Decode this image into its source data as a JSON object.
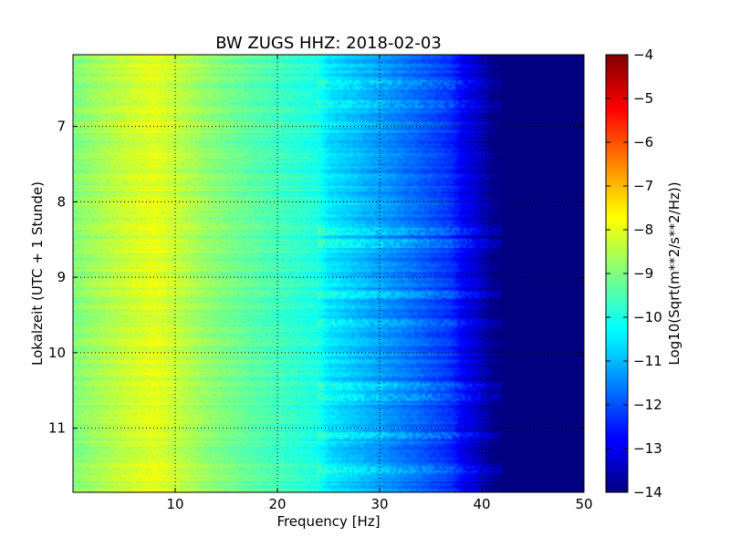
{
  "chart_data": {
    "type": "heatmap",
    "title": "BW ZUGS HHZ: 2018-02-03",
    "xlabel": "Frequency [Hz]",
    "ylabel": "Lokalzeit (UTC + 1 Stunde)",
    "xlim": [
      0,
      50
    ],
    "ylim": [
      11.85,
      6.05
    ],
    "y_inverted": true,
    "xticks": [
      10,
      20,
      30,
      40,
      50
    ],
    "yticks": [
      7,
      8,
      9,
      10,
      11
    ],
    "grid": true,
    "colormap": "jet",
    "colorbar": {
      "label": "Log10(Sqrt(m**2/s**2/Hz))",
      "range": [
        -14,
        -4
      ],
      "ticks": [
        -4,
        -5,
        -6,
        -7,
        -8,
        -9,
        -10,
        -11,
        -12,
        -13,
        -14
      ]
    },
    "spectrum_profile": {
      "frequency_hz": [
        0,
        2,
        5,
        8,
        10,
        13,
        17,
        20,
        24,
        25,
        28,
        30,
        34,
        37,
        38,
        40,
        41,
        42,
        50
      ],
      "log_amplitude": [
        -9.0,
        -8.7,
        -8.3,
        -8.0,
        -8.3,
        -8.8,
        -9.3,
        -9.6,
        -10.0,
        -10.5,
        -10.9,
        -11.2,
        -11.8,
        -12.3,
        -12.8,
        -13.4,
        -13.9,
        -14.0,
        -14.0
      ]
    },
    "noisy_time_bands_hours": [
      6.45,
      6.7,
      8.4,
      8.55,
      9.25,
      9.6,
      10.45,
      10.6,
      11.1,
      11.55
    ]
  },
  "colors": {
    "frame": "#000000",
    "grid": "#000000",
    "background": "#ffffff"
  }
}
